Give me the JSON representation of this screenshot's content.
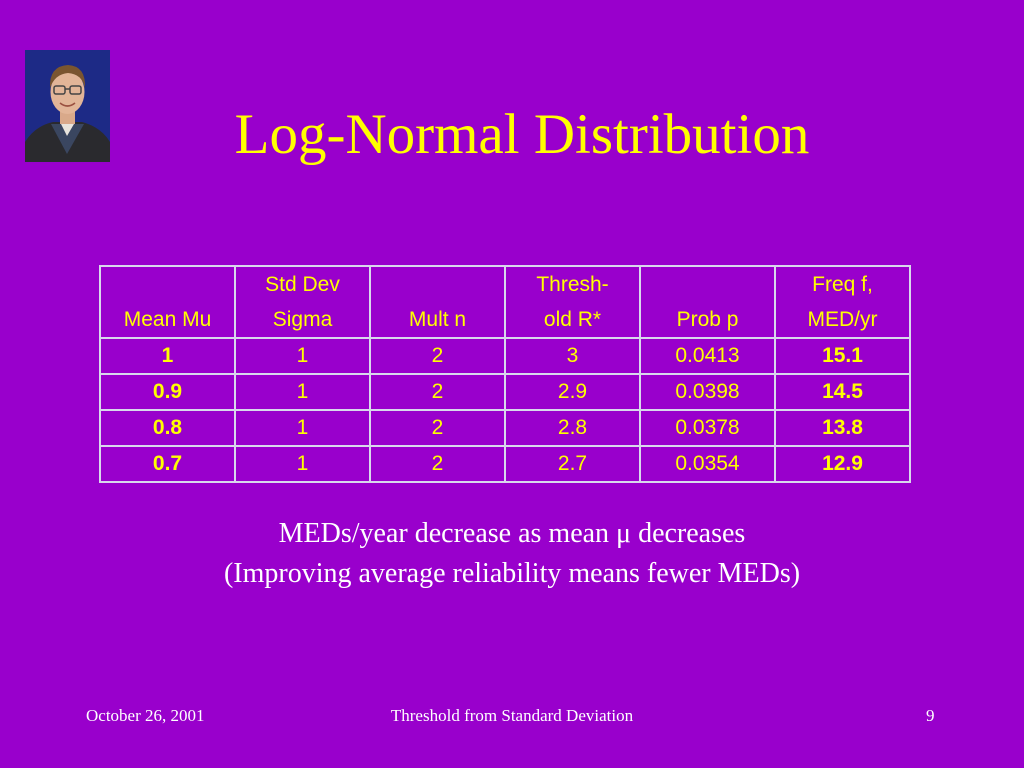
{
  "slide": {
    "title": "Log-Normal Distribution",
    "caption_line1": "MEDs/year decrease as mean μ decreases",
    "caption_line2": "(Improving average reliability means fewer MEDs)"
  },
  "table": {
    "headers": [
      [
        "",
        "Mean Mu"
      ],
      [
        "Std Dev",
        "Sigma"
      ],
      [
        "",
        "Mult n"
      ],
      [
        "Thresh-",
        "old R*"
      ],
      [
        "",
        "Prob p"
      ],
      [
        "Freq f,",
        "MED/yr"
      ]
    ],
    "rows": [
      [
        "1",
        "1",
        "2",
        "3",
        "0.0413",
        "15.1"
      ],
      [
        "0.9",
        "1",
        "2",
        "2.9",
        "0.0398",
        "14.5"
      ],
      [
        "0.8",
        "1",
        "2",
        "2.8",
        "0.0378",
        "13.8"
      ],
      [
        "0.7",
        "1",
        "2",
        "2.7",
        "0.0354",
        "12.9"
      ]
    ]
  },
  "footer": {
    "date": "October 26, 2001",
    "center": "Threshold from Standard Deviation",
    "page": "9"
  },
  "colors": {
    "background": "#9900cc",
    "title": "#ffff00",
    "table_text": "#ffff00",
    "body_text": "#ffffff"
  },
  "icons": {
    "portrait": "presenter-photo"
  }
}
